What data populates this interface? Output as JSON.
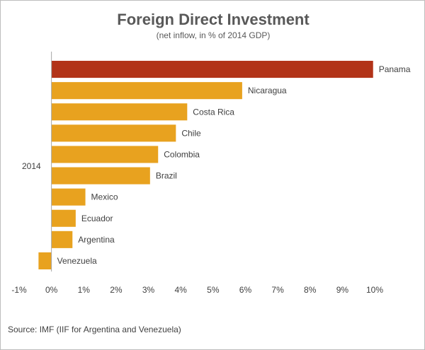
{
  "chart_data": {
    "type": "bar",
    "orientation": "horizontal",
    "title": "Foreign Direct Investment",
    "subtitle": "(net inflow, in % of 2014 GDP)",
    "group_label": "2014",
    "categories": [
      "Panama",
      "Nicaragua",
      "Costa Rica",
      "Chile",
      "Colombia",
      "Brazil",
      "Mexico",
      "Ecuador",
      "Argentina",
      "Venezuela"
    ],
    "values": [
      9.95,
      5.9,
      4.2,
      3.85,
      3.3,
      3.05,
      1.05,
      0.75,
      0.65,
      -0.4
    ],
    "highlight_category": "Panama",
    "colors": {
      "highlight": "#b23318",
      "bar": "#e8a21f",
      "axis": "#a6a6a6",
      "text": "#404040"
    },
    "xlim": [
      -1,
      10
    ],
    "x_ticks": [
      -1,
      0,
      1,
      2,
      3,
      4,
      5,
      6,
      7,
      8,
      9,
      10
    ],
    "x_tick_labels": [
      "-1%",
      "0%",
      "1%",
      "2%",
      "3%",
      "4%",
      "5%",
      "6%",
      "7%",
      "8%",
      "9%",
      "10%"
    ],
    "grid": false,
    "legend": "none",
    "source": "Source: IMF (IIF for Argentina and Venezuela)"
  }
}
